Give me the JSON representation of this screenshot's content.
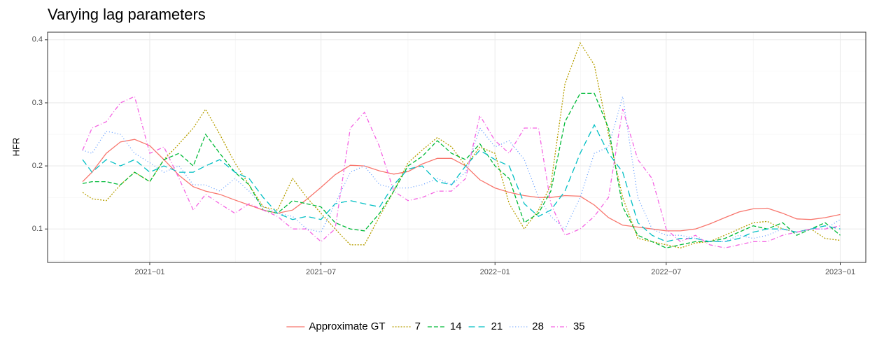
{
  "chart_data": {
    "type": "line",
    "title": "Varying lag parameters",
    "y_label": "HFR",
    "x": [
      "2020-10-22",
      "2020-11-01",
      "2020-11-16",
      "2020-12-01",
      "2020-12-16",
      "2021-01-01",
      "2021-01-16",
      "2021-02-01",
      "2021-02-16",
      "2021-03-01",
      "2021-03-16",
      "2021-04-01",
      "2021-04-16",
      "2021-05-01",
      "2021-05-16",
      "2021-06-01",
      "2021-06-16",
      "2021-07-01",
      "2021-07-16",
      "2021-08-01",
      "2021-08-16",
      "2021-09-01",
      "2021-09-16",
      "2021-10-01",
      "2021-10-16",
      "2021-11-01",
      "2021-11-16",
      "2021-12-01",
      "2021-12-16",
      "2022-01-01",
      "2022-01-16",
      "2022-02-01",
      "2022-02-16",
      "2022-03-01",
      "2022-03-16",
      "2022-04-01",
      "2022-04-16",
      "2022-05-01",
      "2022-05-16",
      "2022-06-01",
      "2022-06-16",
      "2022-07-01",
      "2022-07-16",
      "2022-08-01",
      "2022-08-16",
      "2022-09-01",
      "2022-09-16",
      "2022-10-01",
      "2022-10-16",
      "2022-11-01",
      "2022-11-16",
      "2022-12-01",
      "2022-12-16",
      "2023-01-01"
    ],
    "series": [
      {
        "name": "Approximate GT",
        "color": "#F8766D",
        "dash": "none",
        "values": [
          0.175,
          0.19,
          0.22,
          0.238,
          0.242,
          0.232,
          0.21,
          0.185,
          0.167,
          0.16,
          0.155,
          0.146,
          0.138,
          0.13,
          0.125,
          0.13,
          0.147,
          0.166,
          0.186,
          0.201,
          0.2,
          0.192,
          0.187,
          0.191,
          0.203,
          0.212,
          0.212,
          0.2,
          0.178,
          0.165,
          0.158,
          0.153,
          0.15,
          0.15,
          0.153,
          0.152,
          0.138,
          0.118,
          0.106,
          0.103,
          0.1,
          0.097,
          0.097,
          0.1,
          0.108,
          0.118,
          0.127,
          0.132,
          0.133,
          0.125,
          0.116,
          0.115,
          0.118,
          0.123
        ]
      },
      {
        "name": "7",
        "color": "#B79F00",
        "dash": "2,2",
        "values": [
          0.158,
          0.148,
          0.145,
          0.17,
          0.19,
          0.175,
          0.21,
          0.235,
          0.26,
          0.29,
          0.25,
          0.205,
          0.17,
          0.135,
          0.13,
          0.18,
          0.15,
          0.125,
          0.1,
          0.075,
          0.075,
          0.12,
          0.16,
          0.205,
          0.225,
          0.245,
          0.23,
          0.2,
          0.23,
          0.22,
          0.14,
          0.1,
          0.13,
          0.17,
          0.33,
          0.395,
          0.36,
          0.25,
          0.15,
          0.085,
          0.08,
          0.075,
          0.07,
          0.078,
          0.08,
          0.09,
          0.1,
          0.11,
          0.112,
          0.1,
          0.095,
          0.1,
          0.085,
          0.082
        ]
      },
      {
        "name": "14",
        "color": "#00BA38",
        "dash": "6,3",
        "values": [
          0.172,
          0.175,
          0.175,
          0.17,
          0.19,
          0.175,
          0.21,
          0.22,
          0.2,
          0.25,
          0.22,
          0.19,
          0.17,
          0.13,
          0.125,
          0.145,
          0.14,
          0.135,
          0.11,
          0.1,
          0.097,
          0.125,
          0.16,
          0.2,
          0.215,
          0.24,
          0.22,
          0.21,
          0.235,
          0.2,
          0.18,
          0.11,
          0.125,
          0.16,
          0.27,
          0.315,
          0.315,
          0.26,
          0.135,
          0.09,
          0.08,
          0.07,
          0.075,
          0.08,
          0.08,
          0.085,
          0.095,
          0.105,
          0.1,
          0.11,
          0.09,
          0.1,
          0.11,
          0.09
        ]
      },
      {
        "name": "21",
        "color": "#00BFC4",
        "dash": "9,5",
        "values": [
          0.21,
          0.19,
          0.21,
          0.2,
          0.21,
          0.19,
          0.2,
          0.19,
          0.19,
          0.2,
          0.21,
          0.19,
          0.18,
          0.15,
          0.125,
          0.115,
          0.12,
          0.115,
          0.14,
          0.145,
          0.14,
          0.135,
          0.17,
          0.195,
          0.2,
          0.175,
          0.17,
          0.2,
          0.225,
          0.21,
          0.2,
          0.14,
          0.12,
          0.13,
          0.16,
          0.22,
          0.265,
          0.22,
          0.19,
          0.11,
          0.09,
          0.08,
          0.085,
          0.085,
          0.08,
          0.08,
          0.085,
          0.095,
          0.1,
          0.1,
          0.095,
          0.1,
          0.105,
          0.1
        ]
      },
      {
        "name": "28",
        "color": "#619CFF",
        "dash": "1,3",
        "values": [
          0.225,
          0.22,
          0.255,
          0.25,
          0.22,
          0.205,
          0.19,
          0.2,
          0.17,
          0.17,
          0.16,
          0.18,
          0.16,
          0.135,
          0.125,
          0.12,
          0.1,
          0.095,
          0.14,
          0.19,
          0.2,
          0.17,
          0.165,
          0.165,
          0.17,
          0.18,
          0.17,
          0.19,
          0.26,
          0.23,
          0.24,
          0.21,
          0.15,
          0.12,
          0.1,
          0.15,
          0.22,
          0.23,
          0.31,
          0.15,
          0.1,
          0.09,
          0.09,
          0.085,
          0.08,
          0.08,
          0.09,
          0.085,
          0.09,
          0.1,
          0.095,
          0.1,
          0.1,
          0.115
        ]
      },
      {
        "name": "35",
        "color": "#F564E3",
        "dash": "6,3,1,3",
        "values": [
          0.225,
          0.26,
          0.27,
          0.3,
          0.31,
          0.22,
          0.23,
          0.18,
          0.13,
          0.155,
          0.14,
          0.125,
          0.14,
          0.13,
          0.12,
          0.1,
          0.1,
          0.08,
          0.1,
          0.26,
          0.285,
          0.23,
          0.16,
          0.145,
          0.15,
          0.16,
          0.16,
          0.18,
          0.28,
          0.24,
          0.22,
          0.26,
          0.26,
          0.14,
          0.09,
          0.1,
          0.12,
          0.15,
          0.29,
          0.21,
          0.18,
          0.1,
          0.08,
          0.09,
          0.075,
          0.07,
          0.075,
          0.08,
          0.08,
          0.09,
          0.095,
          0.1,
          0.1,
          0.105
        ]
      }
    ],
    "xlim": [
      "2020-09-15",
      "2023-01-28"
    ],
    "xticks": [
      {
        "value": "2021-01-01",
        "label": "2021−01"
      },
      {
        "value": "2021-07-01",
        "label": "2021−07"
      },
      {
        "value": "2022-01-01",
        "label": "2022−01"
      },
      {
        "value": "2022-07-01",
        "label": "2022−07"
      },
      {
        "value": "2023-01-01",
        "label": "2023−01"
      }
    ],
    "ylim": [
      0.047,
      0.412
    ],
    "yticks": [
      0.1,
      0.2,
      0.3,
      0.4
    ],
    "grid": true,
    "legend": "bottom"
  }
}
